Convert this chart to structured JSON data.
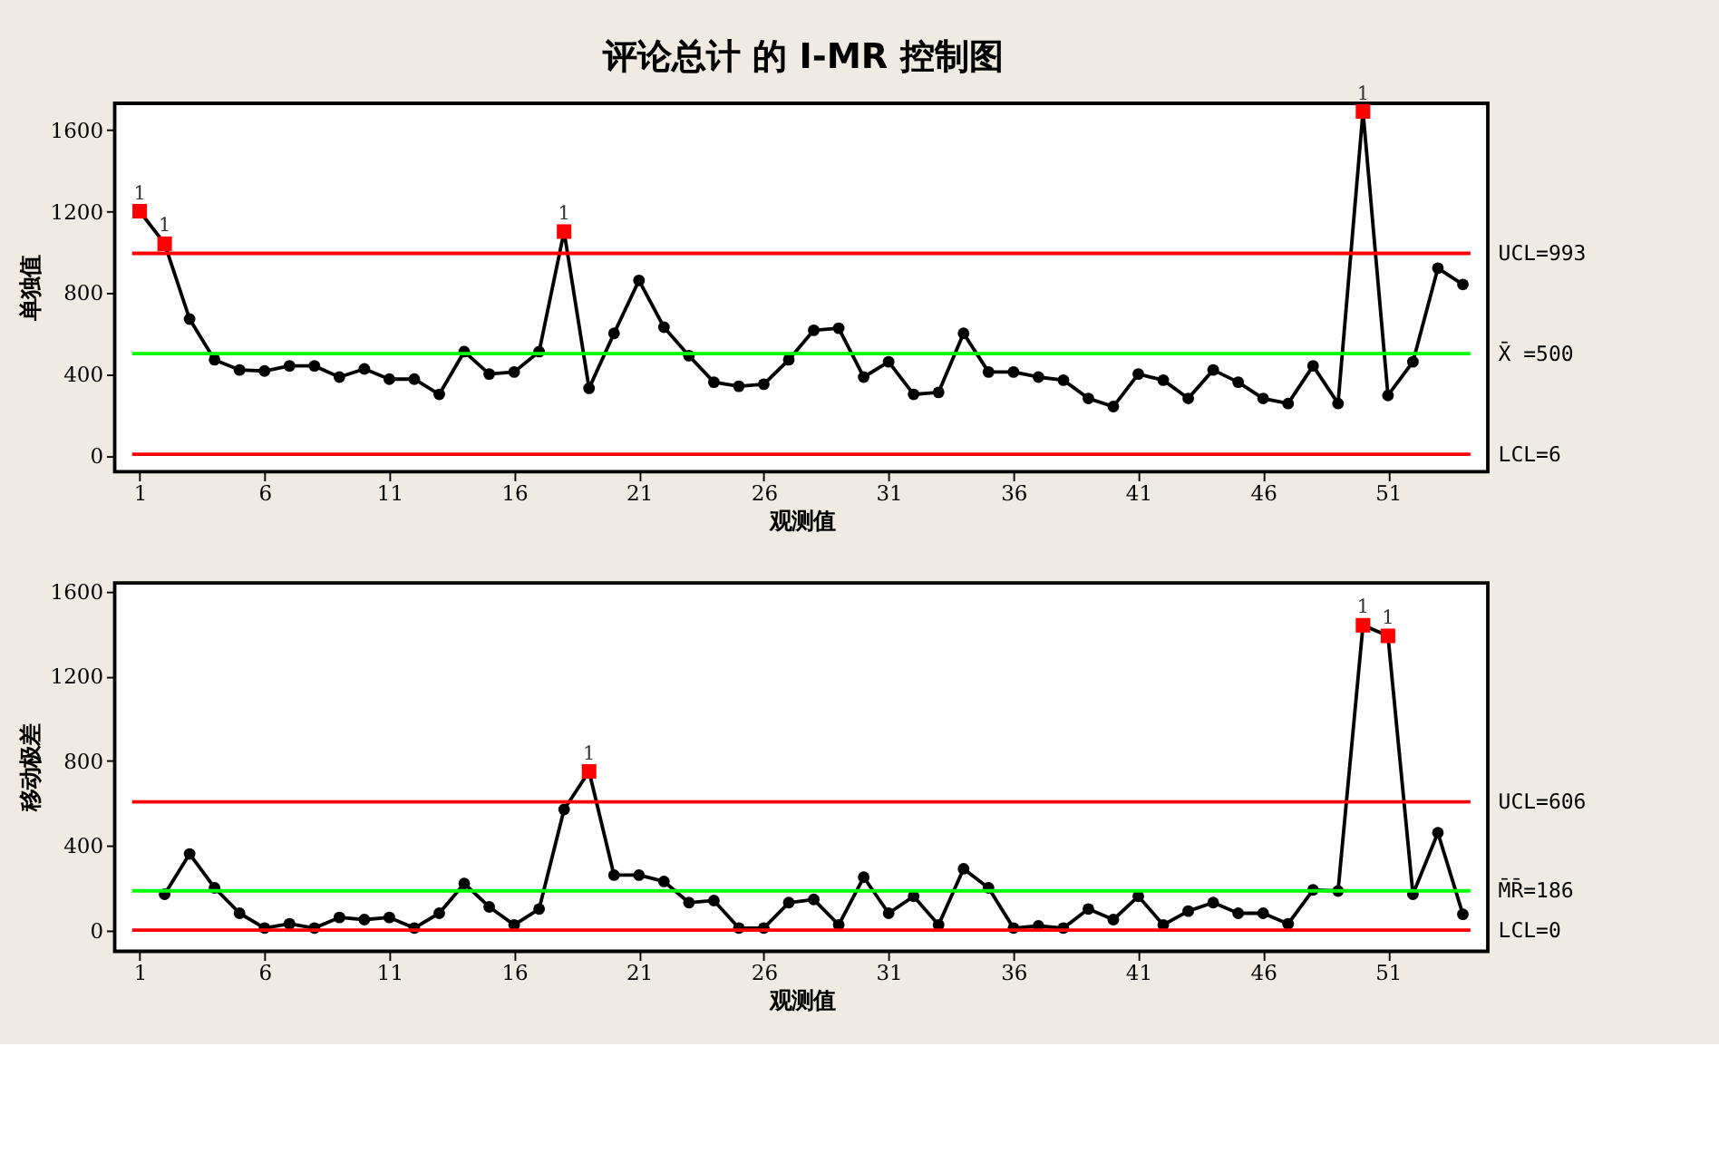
{
  "chart_data": [
    {
      "type": "line",
      "title": "评论总计 的 I-MR 控制图",
      "xlabel": "观测值",
      "ylabel": "单独值",
      "xlim": [
        0,
        55
      ],
      "ylim": [
        -80,
        1730
      ],
      "xticks": [
        1,
        6,
        11,
        16,
        21,
        26,
        31,
        36,
        41,
        46,
        51
      ],
      "yticks": [
        0,
        400,
        800,
        1200,
        1600
      ],
      "grid": false,
      "series": [
        {
          "color": "#000000",
          "marker": "circle",
          "x": [
            1,
            2,
            3,
            4,
            5,
            6,
            7,
            8,
            9,
            10,
            11,
            12,
            13,
            14,
            15,
            16,
            17,
            18,
            19,
            20,
            21,
            22,
            23,
            24,
            25,
            26,
            27,
            28,
            29,
            30,
            31,
            32,
            33,
            34,
            35,
            36,
            37,
            38,
            39,
            40,
            41,
            42,
            43,
            44,
            45,
            46,
            47,
            48,
            49,
            50,
            51,
            52,
            53,
            54
          ],
          "values": [
            1200,
            1040,
            670,
            470,
            420,
            415,
            440,
            440,
            385,
            425,
            375,
            375,
            300,
            510,
            400,
            410,
            510,
            1100,
            330,
            600,
            860,
            630,
            490,
            360,
            340,
            350,
            470,
            615,
            625,
            385,
            460,
            300,
            310,
            600,
            410,
            410,
            385,
            370,
            280,
            240,
            400,
            370,
            280,
            420,
            360,
            280,
            255,
            440,
            255,
            1690,
            295,
            460,
            920,
            840
          ]
        },
        {
          "type": "scatter",
          "color": "#ff0000",
          "marker": "square",
          "x": [
            1,
            2,
            18,
            50
          ],
          "values": [
            1200,
            1040,
            1100,
            1690
          ]
        }
      ],
      "ref_lines": [
        {
          "axis": "y",
          "value": 993,
          "label": "UCL=993",
          "color": "#ff0000"
        },
        {
          "axis": "y",
          "value": 500,
          "label": "X̄ =500",
          "color": "#00ff00"
        },
        {
          "axis": "y",
          "value": 6,
          "label": "LCL=6",
          "color": "#ff0000"
        }
      ],
      "annotations": [
        {
          "text": "1",
          "x": 1,
          "y": 1200
        },
        {
          "text": "1",
          "x": 2,
          "y": 1040
        },
        {
          "text": "1",
          "x": 18,
          "y": 1100
        },
        {
          "text": "1",
          "x": 50,
          "y": 1690
        }
      ]
    },
    {
      "type": "line",
      "xlabel": "观测值",
      "ylabel": "移动极差",
      "xlim": [
        0,
        55
      ],
      "ylim": [
        -100,
        1640
      ],
      "xticks": [
        1,
        6,
        11,
        16,
        21,
        26,
        31,
        36,
        41,
        46,
        51
      ],
      "yticks": [
        0,
        400,
        800,
        1200,
        1600
      ],
      "grid": false,
      "series": [
        {
          "color": "#000000",
          "marker": "circle",
          "x": [
            2,
            3,
            4,
            5,
            6,
            7,
            8,
            9,
            10,
            11,
            12,
            13,
            14,
            15,
            16,
            17,
            18,
            19,
            20,
            21,
            22,
            23,
            24,
            25,
            26,
            27,
            28,
            29,
            30,
            31,
            32,
            33,
            34,
            35,
            36,
            37,
            38,
            39,
            40,
            41,
            42,
            43,
            44,
            45,
            46,
            47,
            48,
            49,
            50,
            51,
            52,
            53,
            54
          ],
          "values": [
            170,
            360,
            200,
            80,
            10,
            30,
            10,
            60,
            50,
            60,
            10,
            80,
            220,
            110,
            25,
            100,
            570,
            750,
            260,
            260,
            230,
            130,
            140,
            10,
            10,
            130,
            145,
            25,
            250,
            80,
            160,
            25,
            290,
            200,
            10,
            20,
            10,
            100,
            50,
            160,
            25,
            90,
            130,
            80,
            80,
            30,
            190,
            185,
            1440,
            1390,
            170,
            460,
            75
          ]
        },
        {
          "type": "scatter",
          "color": "#ff0000",
          "marker": "square",
          "x": [
            19,
            50,
            51
          ],
          "values": [
            750,
            1440,
            1390
          ]
        }
      ],
      "ref_lines": [
        {
          "axis": "y",
          "value": 606,
          "label": "UCL=606",
          "color": "#ff0000"
        },
        {
          "axis": "y",
          "value": 186,
          "label": "M̄R̄=186",
          "color": "#00ff00"
        },
        {
          "axis": "y",
          "value": 0,
          "label": "LCL=0",
          "color": "#ff0000"
        }
      ],
      "annotations": [
        {
          "text": "1",
          "x": 19,
          "y": 750
        },
        {
          "text": "1",
          "x": 50,
          "y": 1440
        },
        {
          "text": "1",
          "x": 51,
          "y": 1390
        }
      ]
    }
  ]
}
